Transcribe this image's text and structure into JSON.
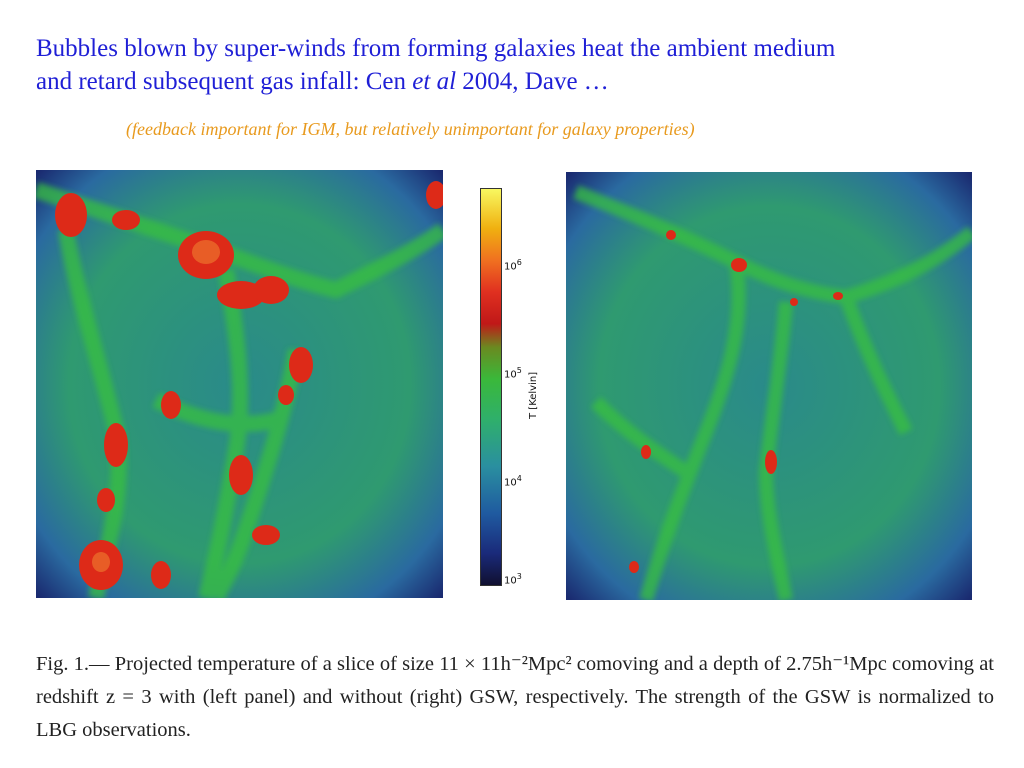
{
  "title": {
    "line1": "Bubbles blown by super-winds from forming galaxies heat the ambient medium",
    "line2_pre": "and retard subsequent gas infall: Cen ",
    "line2_italic": "et al",
    "line2_post": " 2004, Dave …"
  },
  "subtitle": "(feedback important for IGM, but relatively unimportant for galaxy properties)",
  "colorbar": {
    "ticks": [
      {
        "base": "10",
        "exp": "6"
      },
      {
        "base": "10",
        "exp": "5"
      },
      {
        "base": "10",
        "exp": "4"
      },
      {
        "base": "10",
        "exp": "3"
      }
    ],
    "label": "T [Kelvin]"
  },
  "caption": "Fig. 1.— Projected temperature of a slice of size 11 × 11h⁻²Mpc² comoving and a depth of 2.75h⁻¹Mpc comoving at redshift z = 3 with (left panel) and without (right) GSW, respectively. The strength of the GSW is normalized to LBG observations."
}
